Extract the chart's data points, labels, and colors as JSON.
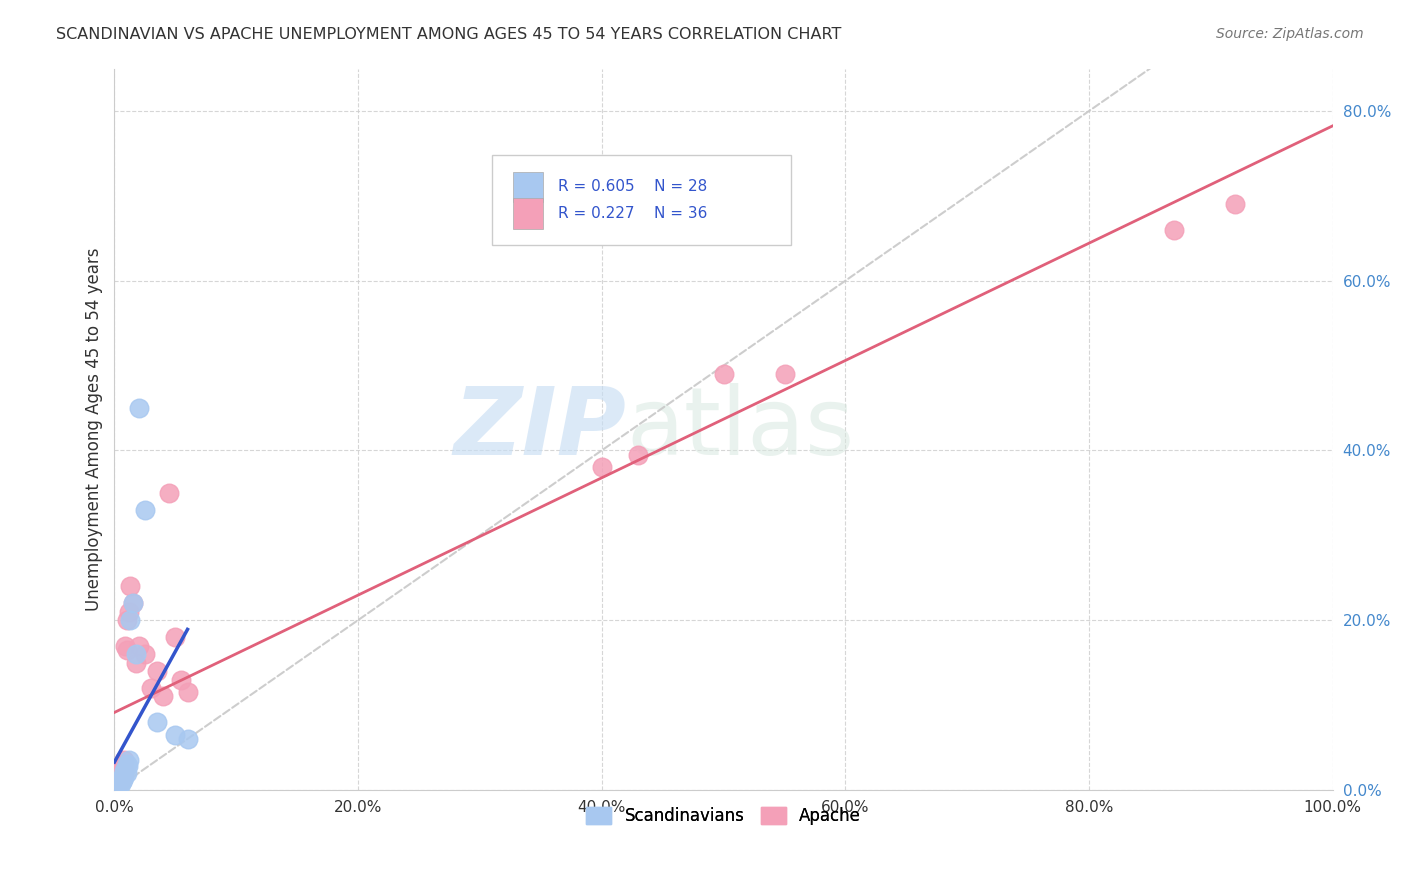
{
  "title": "SCANDINAVIAN VS APACHE UNEMPLOYMENT AMONG AGES 45 TO 54 YEARS CORRELATION CHART",
  "source": "Source: ZipAtlas.com",
  "ylabel": "Unemployment Among Ages 45 to 54 years",
  "xlim": [
    0,
    1.0
  ],
  "ylim": [
    0,
    0.85
  ],
  "xticks": [
    0.0,
    0.2,
    0.4,
    0.6,
    0.8,
    1.0
  ],
  "xtick_labels": [
    "0.0%",
    "20.0%",
    "40.0%",
    "60.0%",
    "80.0%",
    "100.0%"
  ],
  "ytick_labels": [
    "0.0%",
    "20.0%",
    "40.0%",
    "60.0%",
    "80.0%"
  ],
  "yticks": [
    0.0,
    0.2,
    0.4,
    0.6,
    0.8
  ],
  "scandinavian_color": "#a8c8f0",
  "apache_color": "#f4a0b8",
  "regression_line_color_scand": "#3355cc",
  "regression_line_color_apache": "#e0607a",
  "diagonal_line_color": "#c8c8c8",
  "legend_R_color": "#3355cc",
  "R_scand": 0.605,
  "N_scand": 28,
  "R_apache": 0.227,
  "N_apache": 36,
  "scandinavian_x": [
    0.002,
    0.002,
    0.003,
    0.003,
    0.004,
    0.004,
    0.005,
    0.005,
    0.005,
    0.006,
    0.006,
    0.007,
    0.007,
    0.008,
    0.008,
    0.009,
    0.01,
    0.01,
    0.011,
    0.012,
    0.013,
    0.015,
    0.018,
    0.02,
    0.025,
    0.035,
    0.05,
    0.06
  ],
  "scandinavian_y": [
    0.004,
    0.006,
    0.005,
    0.008,
    0.006,
    0.01,
    0.007,
    0.01,
    0.012,
    0.01,
    0.014,
    0.012,
    0.018,
    0.015,
    0.022,
    0.025,
    0.02,
    0.03,
    0.028,
    0.035,
    0.2,
    0.22,
    0.16,
    0.45,
    0.33,
    0.08,
    0.065,
    0.06
  ],
  "apache_x": [
    0.002,
    0.002,
    0.003,
    0.003,
    0.004,
    0.004,
    0.005,
    0.005,
    0.006,
    0.006,
    0.007,
    0.007,
    0.008,
    0.008,
    0.009,
    0.01,
    0.01,
    0.012,
    0.013,
    0.015,
    0.018,
    0.02,
    0.025,
    0.03,
    0.035,
    0.04,
    0.045,
    0.05,
    0.055,
    0.06,
    0.4,
    0.43,
    0.5,
    0.55,
    0.87,
    0.92
  ],
  "apache_y": [
    0.005,
    0.01,
    0.008,
    0.015,
    0.012,
    0.018,
    0.01,
    0.02,
    0.015,
    0.025,
    0.018,
    0.03,
    0.022,
    0.035,
    0.17,
    0.2,
    0.165,
    0.21,
    0.24,
    0.22,
    0.15,
    0.17,
    0.16,
    0.12,
    0.14,
    0.11,
    0.35,
    0.18,
    0.13,
    0.115,
    0.38,
    0.395,
    0.49,
    0.49,
    0.66,
    0.69
  ],
  "watermark_zip": "ZIP",
  "watermark_atlas": "atlas",
  "background_color": "#ffffff",
  "grid_color": "#cccccc",
  "figsize": [
    14.06,
    8.92
  ]
}
